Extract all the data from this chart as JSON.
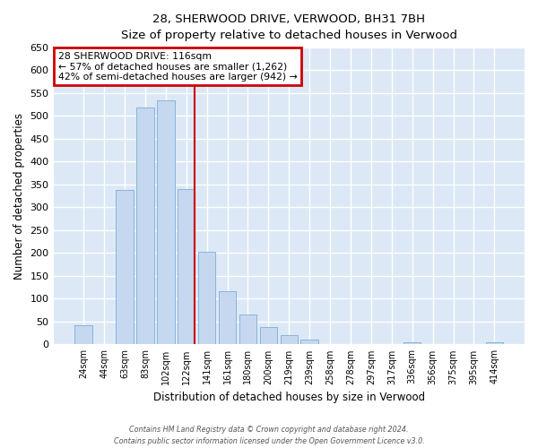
{
  "title1": "28, SHERWOOD DRIVE, VERWOOD, BH31 7BH",
  "title2": "Size of property relative to detached houses in Verwood",
  "xlabel": "Distribution of detached houses by size in Verwood",
  "ylabel": "Number of detached properties",
  "bar_labels": [
    "24sqm",
    "44sqm",
    "63sqm",
    "83sqm",
    "102sqm",
    "122sqm",
    "141sqm",
    "161sqm",
    "180sqm",
    "200sqm",
    "219sqm",
    "239sqm",
    "258sqm",
    "278sqm",
    "297sqm",
    "317sqm",
    "336sqm",
    "356sqm",
    "375sqm",
    "395sqm",
    "414sqm"
  ],
  "bar_values": [
    42,
    0,
    338,
    519,
    534,
    340,
    203,
    117,
    65,
    38,
    20,
    11,
    0,
    0,
    0,
    0,
    5,
    0,
    0,
    0,
    5
  ],
  "bar_color": "#c5d8f0",
  "bar_edge_color": "#7aafd4",
  "vline_x": 5.42,
  "vline_color": "#cc0000",
  "annotation_text": "28 SHERWOOD DRIVE: 116sqm\n← 57% of detached houses are smaller (1,262)\n42% of semi-detached houses are larger (942) →",
  "annotation_box_color": "#cc0000",
  "ylim": [
    0,
    650
  ],
  "yticks": [
    0,
    50,
    100,
    150,
    200,
    250,
    300,
    350,
    400,
    450,
    500,
    550,
    600,
    650
  ],
  "footer1": "Contains HM Land Registry data © Crown copyright and database right 2024.",
  "footer2": "Contains public sector information licensed under the Open Government Licence v3.0.",
  "fig_bg_color": "#ffffff",
  "plot_bg_color": "#dce8f5"
}
